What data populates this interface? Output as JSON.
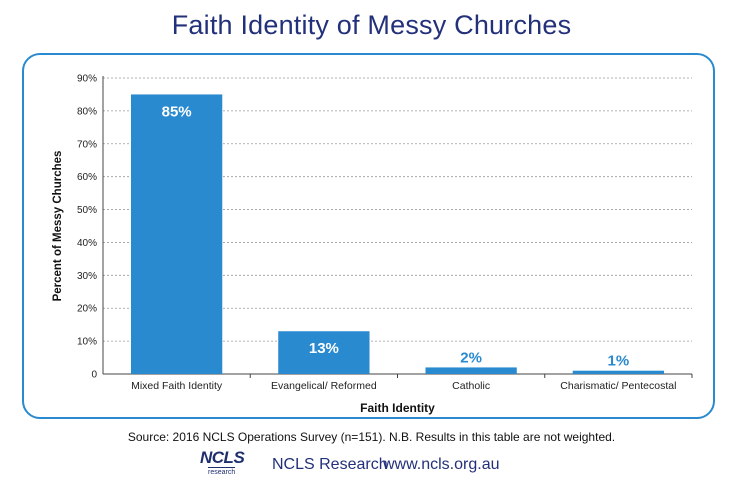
{
  "title": "Faith Identity of Messy Churches",
  "chart_data": {
    "type": "bar",
    "categories": [
      "Mixed Faith Identity",
      "Evangelical/ Reformed",
      "Catholic",
      "Charismatic/ Pentecostal"
    ],
    "values": [
      85,
      13,
      2,
      1
    ],
    "data_labels": [
      "85%",
      "13%",
      "2%",
      "1%"
    ],
    "xlabel": "Faith Identity",
    "ylabel": "Percent of Messy Churches",
    "ylim": [
      0,
      90
    ],
    "yticks": [
      0,
      10,
      20,
      30,
      40,
      50,
      60,
      70,
      80,
      90
    ],
    "ytick_labels": [
      "0",
      "10%",
      "20%",
      "30%",
      "40%",
      "50%",
      "60%",
      "70%",
      "80%",
      "90%"
    ],
    "grid": true,
    "bar_color": "#2a8ad0",
    "label_inside_color": "#ffffff",
    "label_outside_color": "#2a8ad0"
  },
  "source_note": "Source: 2016 NCLS Operations Survey (n=151). N.B. Results in this table are not weighted.",
  "footer": {
    "logo_text": "NCLS",
    "logo_subtext": "research",
    "org_name": "NCLS Research",
    "url": "www.ncls.org.au"
  }
}
